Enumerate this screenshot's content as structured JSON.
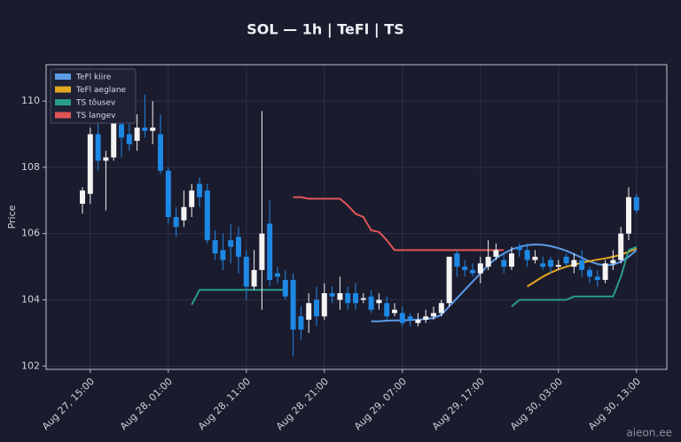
{
  "chart_data": {
    "type": "candlestick",
    "title": "SOL — 1h  |  TeFl  |  TS",
    "ylabel": "Price",
    "annotation": "aieon.ee",
    "categories": [
      null,
      "Aug 27, 15:00",
      null,
      null,
      null,
      null,
      null,
      null,
      null,
      null,
      null,
      "Aug 28, 01:00",
      null,
      null,
      null,
      null,
      null,
      null,
      null,
      null,
      null,
      "Aug 28, 11:00",
      null,
      null,
      null,
      null,
      null,
      null,
      null,
      null,
      null,
      "Aug 28, 21:00",
      null,
      null,
      null,
      null,
      null,
      null,
      null,
      null,
      null,
      "Aug 29, 07:00",
      null,
      null,
      null,
      null,
      null,
      null,
      null,
      null,
      null,
      "Aug 29, 17:00",
      null,
      null,
      null,
      null,
      null,
      null,
      null,
      null,
      null,
      "Aug 30, 03:00",
      null,
      null,
      null,
      null,
      null,
      null,
      null,
      null,
      null,
      "Aug 30, 13:00"
    ],
    "open": [
      106.9,
      107.2,
      109.0,
      108.2,
      108.3,
      109.3,
      109.0,
      108.8,
      109.2,
      109.1,
      109.0,
      107.9,
      106.5,
      106.4,
      106.8,
      107.5,
      107.3,
      105.8,
      105.5,
      105.8,
      105.9,
      105.3,
      104.4,
      104.9,
      106.3,
      104.8,
      104.6,
      104.6,
      103.5,
      103.4,
      104.0,
      103.5,
      104.2,
      104.0,
      104.2,
      104.2,
      104.0,
      104.1,
      103.9,
      103.9,
      103.6,
      103.6,
      103.5,
      103.3,
      103.4,
      103.5,
      103.6,
      103.9,
      105.4,
      105.0,
      104.9,
      104.8,
      105.0,
      105.3,
      105.2,
      105.0,
      105.6,
      105.5,
      105.2,
      105.1,
      105.2,
      105.0,
      105.3,
      105.0,
      105.2,
      104.9,
      104.7,
      104.6,
      105.1,
      105.2,
      106.0,
      107.1
    ],
    "high": [
      107.4,
      109.2,
      109.5,
      108.5,
      110.3,
      109.8,
      109.4,
      109.6,
      110.2,
      110.0,
      109.6,
      108.0,
      106.8,
      107.3,
      107.5,
      107.7,
      107.5,
      106.1,
      106.0,
      106.3,
      106.2,
      105.5,
      105.5,
      109.7,
      107.0,
      105.0,
      104.9,
      104.8,
      103.8,
      104.2,
      104.4,
      104.5,
      104.4,
      104.7,
      104.4,
      104.5,
      104.2,
      104.3,
      104.2,
      104.1,
      103.9,
      103.8,
      103.6,
      103.6,
      103.7,
      103.8,
      104.0,
      105.3,
      105.5,
      105.2,
      105.1,
      105.3,
      105.8,
      105.7,
      105.4,
      105.6,
      105.7,
      105.7,
      105.5,
      105.3,
      105.3,
      105.2,
      105.4,
      105.4,
      105.5,
      105.0,
      104.9,
      105.2,
      105.5,
      106.2,
      107.4,
      107.2
    ],
    "low": [
      106.6,
      106.9,
      107.9,
      106.7,
      108.2,
      108.3,
      108.5,
      108.5,
      108.9,
      108.7,
      107.8,
      106.3,
      105.9,
      106.2,
      106.5,
      106.8,
      105.7,
      105.2,
      104.9,
      105.1,
      104.8,
      104.0,
      104.3,
      103.7,
      104.4,
      104.5,
      104.0,
      102.3,
      102.8,
      103.0,
      103.2,
      103.4,
      103.9,
      103.7,
      103.7,
      103.7,
      103.9,
      103.6,
      103.7,
      103.4,
      103.5,
      103.2,
      103.2,
      103.2,
      103.3,
      103.4,
      103.5,
      103.8,
      104.7,
      104.7,
      104.7,
      104.5,
      104.9,
      105.2,
      104.8,
      104.9,
      105.3,
      105.0,
      105.1,
      104.9,
      104.8,
      104.9,
      105.0,
      104.8,
      104.7,
      104.5,
      104.4,
      104.5,
      104.9,
      105.1,
      105.8,
      106.6
    ],
    "close": [
      107.3,
      109.0,
      108.2,
      108.3,
      109.4,
      108.9,
      108.7,
      109.2,
      109.1,
      109.2,
      107.9,
      106.5,
      106.2,
      106.8,
      107.3,
      107.1,
      105.8,
      105.4,
      105.2,
      105.6,
      105.3,
      104.4,
      104.9,
      106.0,
      104.6,
      104.7,
      104.1,
      103.1,
      103.1,
      103.9,
      103.5,
      104.2,
      104.1,
      104.2,
      103.9,
      103.9,
      104.05,
      103.7,
      104.0,
      103.5,
      103.7,
      103.3,
      103.4,
      103.4,
      103.5,
      103.6,
      103.9,
      105.3,
      105.0,
      104.9,
      104.8,
      105.1,
      105.3,
      105.5,
      105.0,
      105.4,
      105.5,
      105.2,
      105.3,
      105.0,
      105.0,
      105.05,
      105.1,
      105.2,
      104.9,
      104.7,
      104.6,
      105.1,
      105.2,
      106.0,
      107.1,
      106.7
    ],
    "up_color": "#f4f4f4",
    "down_color": "#1e88e5",
    "series": [
      {
        "name": "TeFl kiire",
        "color": "#5b9be6",
        "values": [
          null,
          null,
          null,
          null,
          null,
          null,
          null,
          null,
          null,
          null,
          null,
          null,
          null,
          null,
          null,
          null,
          null,
          null,
          null,
          null,
          null,
          null,
          null,
          null,
          null,
          null,
          null,
          null,
          null,
          null,
          null,
          null,
          null,
          null,
          null,
          null,
          null,
          103.35,
          103.35,
          103.37,
          103.38,
          103.38,
          103.39,
          103.4,
          103.42,
          103.45,
          103.55,
          103.8,
          104.05,
          104.3,
          104.55,
          104.8,
          105.05,
          105.25,
          105.4,
          105.52,
          105.6,
          105.65,
          105.67,
          105.66,
          105.62,
          105.56,
          105.48,
          105.38,
          105.27,
          105.16,
          105.08,
          105.04,
          105.06,
          105.15,
          105.3,
          105.5
        ]
      },
      {
        "name": "TeFl aeglane",
        "color": "#e3a81f",
        "values": [
          null,
          null,
          null,
          null,
          null,
          null,
          null,
          null,
          null,
          null,
          null,
          null,
          null,
          null,
          null,
          null,
          null,
          null,
          null,
          null,
          null,
          null,
          null,
          null,
          null,
          null,
          null,
          null,
          null,
          null,
          null,
          null,
          null,
          null,
          null,
          null,
          null,
          null,
          null,
          null,
          null,
          null,
          null,
          null,
          null,
          null,
          null,
          null,
          null,
          null,
          null,
          null,
          null,
          null,
          null,
          null,
          null,
          104.4,
          104.55,
          104.7,
          104.82,
          104.92,
          105.0,
          105.06,
          105.12,
          105.17,
          105.21,
          105.25,
          105.3,
          105.36,
          105.45,
          105.55
        ]
      },
      {
        "name": "TS tõusev",
        "color": "#2a9d86",
        "values": [
          null,
          null,
          null,
          null,
          null,
          null,
          null,
          null,
          null,
          null,
          null,
          null,
          null,
          null,
          103.85,
          104.3,
          104.3,
          104.3,
          104.3,
          104.3,
          104.3,
          104.3,
          104.3,
          104.3,
          104.3,
          104.3,
          104.3,
          null,
          null,
          null,
          null,
          null,
          null,
          null,
          null,
          null,
          null,
          null,
          null,
          null,
          null,
          null,
          null,
          null,
          null,
          null,
          null,
          null,
          null,
          null,
          null,
          null,
          null,
          null,
          null,
          103.8,
          104.0,
          104.0,
          104.0,
          104.0,
          104.0,
          104.0,
          104.0,
          104.1,
          104.1,
          104.1,
          104.1,
          104.1,
          104.1,
          104.7,
          105.5,
          105.6
        ]
      },
      {
        "name": "TS langev",
        "color": "#e05656",
        "values": [
          null,
          null,
          null,
          null,
          null,
          null,
          null,
          null,
          null,
          null,
          null,
          null,
          null,
          null,
          null,
          null,
          null,
          null,
          null,
          null,
          null,
          null,
          null,
          null,
          null,
          null,
          null,
          107.1,
          107.1,
          107.05,
          107.05,
          107.05,
          107.05,
          107.05,
          106.85,
          106.6,
          106.5,
          106.1,
          106.05,
          105.8,
          105.5,
          105.5,
          105.5,
          105.5,
          105.5,
          105.5,
          105.5,
          105.5,
          105.5,
          105.5,
          105.5,
          105.5,
          105.5,
          105.5,
          105.5,
          null,
          null,
          null,
          null,
          null,
          null,
          null,
          null,
          null,
          null,
          null,
          null,
          null,
          null,
          null,
          null,
          null
        ]
      }
    ],
    "ylim": [
      101.9,
      111.1
    ],
    "yticks": [
      102,
      104,
      106,
      108,
      110
    ],
    "grid": true,
    "legend": "upper left"
  }
}
